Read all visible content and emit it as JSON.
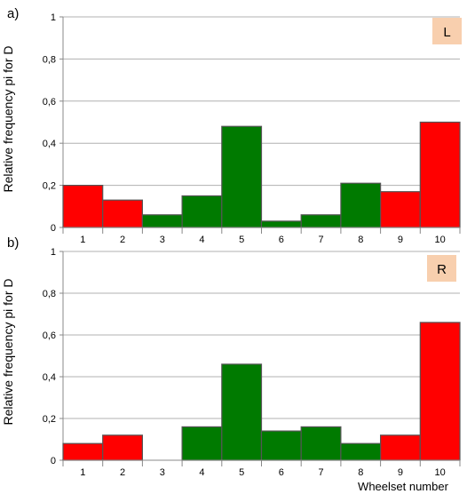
{
  "chart_data": [
    {
      "panel_label": "a)",
      "type": "bar",
      "categories": [
        "1",
        "2",
        "3",
        "4",
        "5",
        "6",
        "7",
        "8",
        "9",
        "10"
      ],
      "values": [
        0.2,
        0.13,
        0.06,
        0.15,
        0.48,
        0.03,
        0.06,
        0.21,
        0.17,
        0.5
      ],
      "bar_colors": [
        "red",
        "red",
        "green",
        "green",
        "green",
        "green",
        "green",
        "green",
        "red",
        "red"
      ],
      "yticks": [
        "0",
        "0,2",
        "0,4",
        "0,6",
        "0,8",
        "1"
      ],
      "ylim": [
        0,
        1
      ],
      "grid": true,
      "badge": "L"
    },
    {
      "panel_label": "b)",
      "type": "bar",
      "categories": [
        "1",
        "2",
        "3",
        "4",
        "5",
        "6",
        "7",
        "8",
        "9",
        "10"
      ],
      "values": [
        0.08,
        0.12,
        0.0,
        0.16,
        0.46,
        0.14,
        0.16,
        0.08,
        0.12,
        0.66
      ],
      "bar_colors": [
        "red",
        "red",
        "green",
        "green",
        "green",
        "green",
        "green",
        "green",
        "red",
        "red"
      ],
      "yticks": [
        "0",
        "0,2",
        "0,4",
        "0,6",
        "0,8",
        "1"
      ],
      "ylim": [
        0,
        1
      ],
      "grid": true,
      "badge": "R"
    }
  ],
  "ylabel": "Relative frequency pi for D",
  "xlabel": "Wheelset number",
  "colors": {
    "red": "#ff0000",
    "green": "#007a00",
    "bar_stroke": "#555555",
    "grid": "#b0b0b0",
    "badge_bg": "#f8cfae"
  }
}
